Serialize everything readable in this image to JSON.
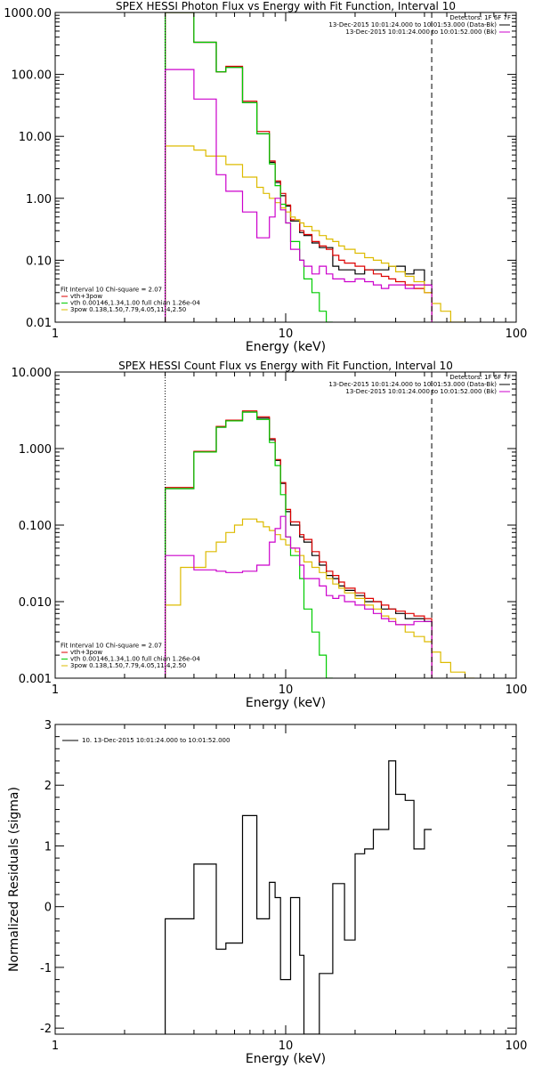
{
  "chart_data": [
    {
      "type": "line",
      "title": "SPEX HESSI Photon Flux vs Energy with Fit Function, Interval 10",
      "xlabel": "Energy (keV)",
      "ylabel": "",
      "xscale": "log",
      "yscale": "log",
      "xlim": [
        1,
        100
      ],
      "ylim": [
        0.01,
        1000
      ],
      "xticks": [
        {
          "v": 1,
          "label": "1"
        },
        {
          "v": 10,
          "label": "10"
        },
        {
          "v": 100,
          "label": "100"
        }
      ],
      "yticks": [
        {
          "v": 0.01,
          "label": "0.01"
        },
        {
          "v": 0.1,
          "label": "0.10"
        },
        {
          "v": 1,
          "label": "1.00"
        },
        {
          "v": 10,
          "label": "10.00"
        },
        {
          "v": 100,
          "label": "100.00"
        },
        {
          "v": 1000,
          "label": "1000.00"
        }
      ],
      "vlines": [
        {
          "x": 3,
          "style": "dotted"
        },
        {
          "x": 43,
          "style": "dashed"
        }
      ],
      "legend_top": {
        "placement": "top-right",
        "lines": [
          {
            "text": "Detectors: 1F 6F 7F",
            "color": "#000000"
          },
          {
            "text": "13-Dec-2015 10:01:24.000 to 10:01:53.000 (Data-Bk)",
            "color": "#000000"
          },
          {
            "text": "13-Dec-2015 10:01:24.000 to 10:01:52.000 (Bk)",
            "color": "#cc00cc"
          }
        ]
      },
      "legend_bottom": {
        "placement": "bottom-left",
        "lines": [
          {
            "text": "Fit Interval 10   Chi-square = 2.07",
            "color": "#000000"
          },
          {
            "text": "vth+3pow",
            "color": "#dd0000"
          },
          {
            "text": "vth 0.00146,1.34,1.00  full chian 1.26e-04",
            "color": "#00cc00"
          },
          {
            "text": "3pow 0.138,1.50,7.79,4.05,11.4,2.50",
            "color": "#ddbb00"
          }
        ]
      },
      "series": [
        {
          "color": "#000000",
          "edges": [
            3,
            3.5,
            4,
            4.5,
            5,
            5.5,
            6,
            6.5,
            7,
            7.5,
            8,
            8.5,
            9,
            9.5,
            10,
            10.5,
            11,
            11.5,
            12,
            13,
            14,
            15,
            16,
            17,
            18,
            20,
            22,
            24,
            26,
            28,
            30,
            33,
            36,
            40,
            43
          ],
          "values": [
            1000,
            1000,
            330,
            330,
            110,
            130,
            130,
            35,
            35,
            11,
            11,
            3.8,
            1.8,
            1.1,
            0.75,
            0.43,
            0.43,
            0.28,
            0.25,
            0.19,
            0.16,
            0.16,
            0.08,
            0.07,
            0.07,
            0.06,
            0.07,
            0.07,
            0.07,
            0.08,
            0.08,
            0.06,
            0.07,
            0.04
          ]
        },
        {
          "color": "#dd0000",
          "edges": [
            3,
            3.5,
            4,
            4.5,
            5,
            5.5,
            6,
            6.5,
            7,
            7.5,
            8,
            8.5,
            9,
            9.5,
            10,
            10.5,
            11,
            11.5,
            12,
            13,
            14,
            15,
            16,
            17,
            18,
            20,
            22,
            24,
            26,
            28,
            30,
            33,
            36,
            40,
            43
          ],
          "values": [
            1000,
            1000,
            330,
            330,
            110,
            135,
            135,
            37,
            37,
            12,
            12,
            4.0,
            1.9,
            1.2,
            0.78,
            0.45,
            0.45,
            0.3,
            0.26,
            0.2,
            0.17,
            0.15,
            0.12,
            0.1,
            0.09,
            0.08,
            0.07,
            0.06,
            0.055,
            0.05,
            0.045,
            0.04,
            0.035,
            0.03
          ]
        },
        {
          "color": "#00cc00",
          "edges": [
            3,
            3.5,
            4,
            4.5,
            5,
            5.5,
            6,
            6.5,
            7,
            7.5,
            8,
            8.5,
            9,
            9.5,
            10,
            10.5,
            11,
            11.5,
            12,
            13,
            14,
            15,
            16
          ],
          "values": [
            1000,
            1000,
            330,
            330,
            110,
            130,
            130,
            35,
            35,
            11,
            11,
            3.6,
            1.6,
            0.8,
            0.4,
            0.2,
            0.2,
            0.1,
            0.05,
            0.03,
            0.015,
            0.01
          ]
        },
        {
          "color": "#ddbb00",
          "edges": [
            3,
            3.5,
            4,
            4.5,
            5,
            5.5,
            6,
            6.5,
            7,
            7.5,
            8,
            8.5,
            9,
            9.5,
            10,
            10.5,
            11,
            11.5,
            12,
            13,
            14,
            15,
            16,
            17,
            18,
            20,
            22,
            24,
            26,
            28,
            30,
            33,
            36,
            40,
            43,
            47,
            52,
            60
          ],
          "values": [
            7,
            7,
            6,
            4.8,
            4.8,
            3.5,
            3.5,
            2.2,
            2.2,
            1.5,
            1.2,
            1.0,
            0.85,
            0.7,
            0.6,
            0.5,
            0.45,
            0.4,
            0.35,
            0.3,
            0.25,
            0.22,
            0.2,
            0.17,
            0.15,
            0.13,
            0.11,
            0.1,
            0.09,
            0.08,
            0.065,
            0.055,
            0.045,
            0.03,
            0.02,
            0.015,
            0.01
          ]
        },
        {
          "color": "#cc00cc",
          "edges": [
            3,
            3.5,
            4,
            4.5,
            5,
            5.5,
            6,
            6.5,
            7,
            7.5,
            8,
            8.5,
            9,
            9.5,
            10,
            10.5,
            11,
            11.5,
            12,
            13,
            14,
            15,
            16,
            17,
            18,
            20,
            22,
            24,
            26,
            28,
            30,
            33,
            36,
            40,
            43
          ],
          "values": [
            120,
            120,
            40,
            40,
            2.4,
            1.3,
            1.3,
            0.6,
            0.6,
            0.23,
            0.23,
            0.5,
            1.0,
            0.65,
            0.4,
            0.15,
            0.15,
            0.1,
            0.08,
            0.06,
            0.08,
            0.06,
            0.05,
            0.05,
            0.045,
            0.05,
            0.045,
            0.04,
            0.035,
            0.04,
            0.04,
            0.035,
            0.04,
            0.04
          ]
        }
      ]
    },
    {
      "type": "line",
      "title": "SPEX HESSI Count Flux vs Energy with Fit Function, Interval 10",
      "xlabel": "Energy (keV)",
      "ylabel": "",
      "xscale": "log",
      "yscale": "log",
      "xlim": [
        1,
        100
      ],
      "ylim": [
        0.001,
        10
      ],
      "xticks": [
        {
          "v": 1,
          "label": "1"
        },
        {
          "v": 10,
          "label": "10"
        },
        {
          "v": 100,
          "label": "100"
        }
      ],
      "yticks": [
        {
          "v": 0.001,
          "label": "0.001"
        },
        {
          "v": 0.01,
          "label": "0.010"
        },
        {
          "v": 0.1,
          "label": "0.100"
        },
        {
          "v": 1,
          "label": "1.000"
        },
        {
          "v": 10,
          "label": "10.000"
        }
      ],
      "vlines": [
        {
          "x": 3,
          "style": "dotted"
        },
        {
          "x": 43,
          "style": "dashed"
        }
      ],
      "legend_top": {
        "placement": "top-right",
        "lines": [
          {
            "text": "Detectors: 1F 6F 7F",
            "color": "#000000"
          },
          {
            "text": "13-Dec-2015 10:01:24.000 to 10:01:53.000 (Data-Bk)",
            "color": "#000000"
          },
          {
            "text": "13-Dec-2015 10:01:24.000 to 10:01:52.000 (Bk)",
            "color": "#cc00cc"
          }
        ]
      },
      "legend_bottom": {
        "placement": "bottom-left",
        "lines": [
          {
            "text": "Fit Interval 10   Chi-square = 2.07",
            "color": "#000000"
          },
          {
            "text": "vth+3pow",
            "color": "#dd0000"
          },
          {
            "text": "vth 0.00146,1.34,1.00  full chian 1.26e-04",
            "color": "#00cc00"
          },
          {
            "text": "3pow 0.138,1.50,7.79,4.05,11.4,2.50",
            "color": "#ddbb00"
          }
        ]
      },
      "series": [
        {
          "color": "#000000",
          "edges": [
            3,
            3.5,
            4,
            4.5,
            5,
            5.5,
            6,
            6.5,
            7,
            7.5,
            8,
            8.5,
            9,
            9.5,
            10,
            10.5,
            11,
            11.5,
            12,
            13,
            14,
            15,
            16,
            17,
            18,
            20,
            22,
            24,
            26,
            28,
            30,
            33,
            36,
            40,
            43
          ],
          "values": [
            0.3,
            0.3,
            0.9,
            0.9,
            1.9,
            2.3,
            2.3,
            3.0,
            3.0,
            2.5,
            2.5,
            1.3,
            0.7,
            0.35,
            0.15,
            0.1,
            0.1,
            0.07,
            0.06,
            0.04,
            0.03,
            0.022,
            0.02,
            0.016,
            0.014,
            0.012,
            0.01,
            0.01,
            0.008,
            0.008,
            0.007,
            0.006,
            0.006,
            0.0055
          ]
        },
        {
          "color": "#dd0000",
          "edges": [
            3,
            3.5,
            4,
            4.5,
            5,
            5.5,
            6,
            6.5,
            7,
            7.5,
            8,
            8.5,
            9,
            9.5,
            10,
            10.5,
            11,
            11.5,
            12,
            13,
            14,
            15,
            16,
            17,
            18,
            20,
            22,
            24,
            26,
            28,
            30,
            33,
            36,
            40,
            43
          ],
          "values": [
            0.31,
            0.31,
            0.92,
            0.92,
            1.95,
            2.35,
            2.35,
            3.1,
            3.1,
            2.6,
            2.6,
            1.35,
            0.72,
            0.36,
            0.16,
            0.11,
            0.11,
            0.075,
            0.065,
            0.045,
            0.033,
            0.025,
            0.022,
            0.018,
            0.015,
            0.013,
            0.011,
            0.01,
            0.009,
            0.008,
            0.0075,
            0.007,
            0.0065,
            0.006
          ]
        },
        {
          "color": "#00cc00",
          "edges": [
            3,
            3.5,
            4,
            4.5,
            5,
            5.5,
            6,
            6.5,
            7,
            7.5,
            8,
            8.5,
            9,
            9.5,
            10,
            10.5,
            11,
            11.5,
            12,
            13,
            14,
            15,
            16
          ],
          "values": [
            0.3,
            0.3,
            0.9,
            0.9,
            1.9,
            2.3,
            2.3,
            3.0,
            3.0,
            2.4,
            2.4,
            1.2,
            0.6,
            0.25,
            0.07,
            0.04,
            0.04,
            0.02,
            0.008,
            0.004,
            0.002,
            0.001
          ]
        },
        {
          "color": "#ddbb00",
          "edges": [
            3,
            3.5,
            4,
            4.5,
            5,
            5.5,
            6,
            6.5,
            7,
            7.5,
            8,
            8.5,
            9,
            9.5,
            10,
            10.5,
            11,
            11.5,
            12,
            13,
            14,
            15,
            16,
            17,
            18,
            20,
            22,
            24,
            26,
            28,
            30,
            33,
            36,
            40,
            43,
            47,
            52,
            60,
            66
          ],
          "values": [
            0.009,
            0.028,
            0.028,
            0.045,
            0.06,
            0.08,
            0.1,
            0.12,
            0.12,
            0.11,
            0.095,
            0.085,
            0.075,
            0.065,
            0.055,
            0.05,
            0.045,
            0.04,
            0.033,
            0.028,
            0.024,
            0.02,
            0.017,
            0.015,
            0.013,
            0.011,
            0.009,
            0.008,
            0.0065,
            0.006,
            0.005,
            0.004,
            0.0035,
            0.003,
            0.0022,
            0.0016,
            0.0012,
            0.001
          ]
        },
        {
          "color": "#cc00cc",
          "edges": [
            3,
            3.5,
            4,
            4.5,
            5,
            5.5,
            6,
            6.5,
            7,
            7.5,
            8,
            8.5,
            9,
            9.5,
            10,
            10.5,
            11,
            11.5,
            12,
            13,
            14,
            15,
            16,
            17,
            18,
            20,
            22,
            24,
            26,
            28,
            30,
            33,
            36,
            40,
            43
          ],
          "values": [
            0.04,
            0.04,
            0.026,
            0.026,
            0.025,
            0.024,
            0.024,
            0.025,
            0.025,
            0.03,
            0.03,
            0.06,
            0.09,
            0.13,
            0.07,
            0.05,
            0.05,
            0.03,
            0.02,
            0.02,
            0.016,
            0.012,
            0.011,
            0.012,
            0.01,
            0.009,
            0.008,
            0.007,
            0.006,
            0.0055,
            0.005,
            0.005,
            0.0055,
            0.0055
          ]
        }
      ]
    },
    {
      "type": "line",
      "title": "",
      "xlabel": "Energy (keV)",
      "ylabel": "Normalized Residuals (sigma)",
      "xscale": "log",
      "yscale": "linear",
      "xlim": [
        1,
        100
      ],
      "ylim": [
        -2.1,
        3
      ],
      "xticks": [
        {
          "v": 1,
          "label": "1"
        },
        {
          "v": 10,
          "label": "10"
        },
        {
          "v": 100,
          "label": "100"
        }
      ],
      "yticks": [
        {
          "v": -2,
          "label": "-2"
        },
        {
          "v": -1,
          "label": "-1"
        },
        {
          "v": 0,
          "label": "0"
        },
        {
          "v": 1,
          "label": "1"
        },
        {
          "v": 2,
          "label": "2"
        },
        {
          "v": 3,
          "label": "3"
        }
      ],
      "vlines": [],
      "legend_top": {
        "placement": "top-left",
        "lines": [
          {
            "text": "10. 13-Dec-2015 10:01:24.000 to 10:01:52.000",
            "color": "#000000"
          }
        ]
      },
      "legend_bottom": {
        "placement": "bottom-left",
        "lines": []
      },
      "series": [
        {
          "color": "#000000",
          "edges": [
            3,
            3.5,
            4,
            4.5,
            5,
            5.5,
            6,
            6.5,
            7,
            7.5,
            8,
            8.5,
            9,
            9.5,
            10,
            10.5,
            11,
            11.5,
            12,
            13,
            14,
            15,
            16,
            17,
            18,
            20,
            22,
            24,
            26,
            28,
            30,
            33,
            36,
            40,
            43
          ],
          "values": [
            -0.2,
            -0.2,
            0.7,
            0.7,
            -0.7,
            -0.6,
            -0.6,
            1.5,
            1.5,
            -0.2,
            -0.2,
            0.4,
            0.15,
            -1.2,
            -1.2,
            0.15,
            0.15,
            -0.8,
            -2.1,
            -2.1,
            -1.1,
            -1.1,
            0.38,
            0.38,
            -0.55,
            0.87,
            0.95,
            1.27,
            1.27,
            2.4,
            1.85,
            1.75,
            0.95,
            1.27
          ]
        }
      ]
    }
  ]
}
